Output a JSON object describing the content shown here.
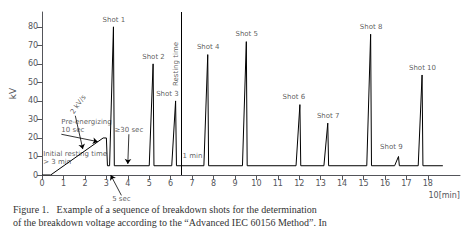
{
  "chart_data": {
    "type": "line",
    "title": [
      "Figure 1.   Example of a sequence of breakdown shots for the determination",
      "of the breakdown voltage according to the “Advanced IEC 60156 Method”. In"
    ],
    "ylabel": "kV",
    "xlabel": "10[min]",
    "x": [
      0,
      0.4,
      2.85,
      3.0,
      3.05,
      3.15,
      3.33,
      3.37,
      3.35,
      5.0,
      5.18,
      5.22,
      5.2,
      6.05,
      6.23,
      6.27,
      6.25,
      7.55,
      7.73,
      7.77,
      7.75,
      9.35,
      9.53,
      9.57,
      9.55,
      11.85,
      12.03,
      12.07,
      12.05,
      13.15,
      13.33,
      13.37,
      13.35,
      15.15,
      15.33,
      15.37,
      15.35,
      16.45,
      16.63,
      16.67,
      16.65,
      17.55,
      17.73,
      17.77,
      17.75,
      18.7
    ],
    "values": [
      0,
      0,
      20,
      20,
      5,
      5,
      80,
      5,
      5,
      5,
      60,
      5,
      5,
      5,
      40,
      5,
      5,
      5,
      65,
      5,
      5,
      5,
      72,
      5,
      5,
      5,
      38,
      5,
      5,
      5,
      28,
      5,
      5,
      5,
      76,
      5,
      5,
      5,
      10,
      5,
      5,
      5,
      54,
      5,
      5,
      5
    ],
    "color": "#000000",
    "xlim": [
      0,
      19.5
    ],
    "ylim": [
      0,
      88
    ],
    "xticks": [
      0,
      1,
      2,
      3,
      4,
      5,
      6,
      7,
      8,
      9,
      10,
      11,
      12,
      13,
      14,
      15,
      16,
      17,
      18
    ],
    "yticks": [
      0,
      10,
      20,
      30,
      40,
      50,
      60,
      70,
      80
    ],
    "grid": false,
    "vlines": [
      6.5
    ],
    "shot_labels": [
      {
        "text": "Shot 1",
        "x": 3.35,
        "y": 82
      },
      {
        "text": "Shot 2",
        "x": 5.2,
        "y": 62
      },
      {
        "text": "Shot 3",
        "x": 5.85,
        "y": 42
      },
      {
        "text": "Shot 4",
        "x": 7.75,
        "y": 67
      },
      {
        "text": "Shot 5",
        "x": 9.55,
        "y": 74
      },
      {
        "text": "Shot 6",
        "x": 11.75,
        "y": 40
      },
      {
        "text": "Shot 7",
        "x": 13.35,
        "y": 30
      },
      {
        "text": "Shot 8",
        "x": 15.35,
        "y": 78
      },
      {
        "text": "Shot 9",
        "x": 16.3,
        "y": 13
      },
      {
        "text": "Shot 10",
        "x": 17.75,
        "y": 56
      }
    ],
    "annotations": [
      {
        "text": "2 kV/s",
        "x": 1.55,
        "y": 32,
        "arrow_to": [
          1.9,
          14
        ]
      },
      {
        "text": "≥30 sec",
        "x": 4.05,
        "y": 22,
        "arrow_to": [
          4.0,
          6
        ]
      },
      {
        "text": "Resting time",
        "x": 6.25,
        "y": 48
      },
      {
        "text": "1 min",
        "x": 6.55,
        "y": 10
      },
      {
        "text": "Pre-energizing\n10 sec",
        "x": 0.9,
        "y": 22,
        "arrow_to": [
          2.6,
          18
        ]
      },
      {
        "text": "Initial resting time\n> 3 min",
        "x": 0.05,
        "y": 9
      },
      {
        "text": "5 sec",
        "x": 3.7,
        "y": -11,
        "arrow_to": [
          3.2,
          0
        ]
      }
    ]
  }
}
